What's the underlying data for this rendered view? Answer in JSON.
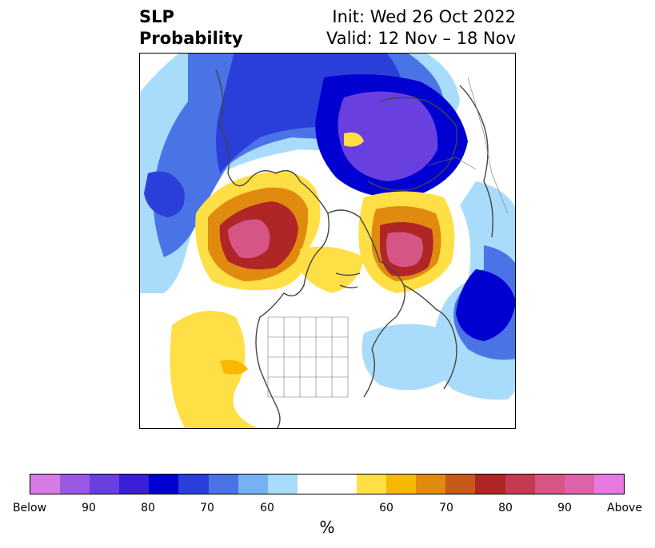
{
  "title": {
    "left_line1": "SLP",
    "left_line2": "Probability",
    "right_line1": "Init: Wed 26 Oct 2022",
    "right_line2": "Valid: 12 Nov – 18 Nov"
  },
  "map": {
    "projection": "north polar stereographic",
    "variable": "sea level pressure tercile probability",
    "below_color_scale": "blue-purple",
    "above_color_scale": "yellow-red-pink"
  },
  "colorbar": {
    "swatches": [
      "#d67ae6",
      "#9b59e3",
      "#6a3fe0",
      "#3a1fd6",
      "#0000d0",
      "#2a3fd9",
      "#4a74e6",
      "#76b2f3",
      "#a9dcfb",
      "#ffffff",
      "#ffffff",
      "#ffdf46",
      "#f6b800",
      "#e08a10",
      "#c65a1a",
      "#b02525",
      "#c43a50",
      "#d55585",
      "#dd62a8",
      "#e67ae0"
    ],
    "tick_labels": [
      "Below",
      "90",
      "80",
      "70",
      "60",
      "60",
      "70",
      "80",
      "90",
      "Above"
    ],
    "unit_label": "%"
  }
}
